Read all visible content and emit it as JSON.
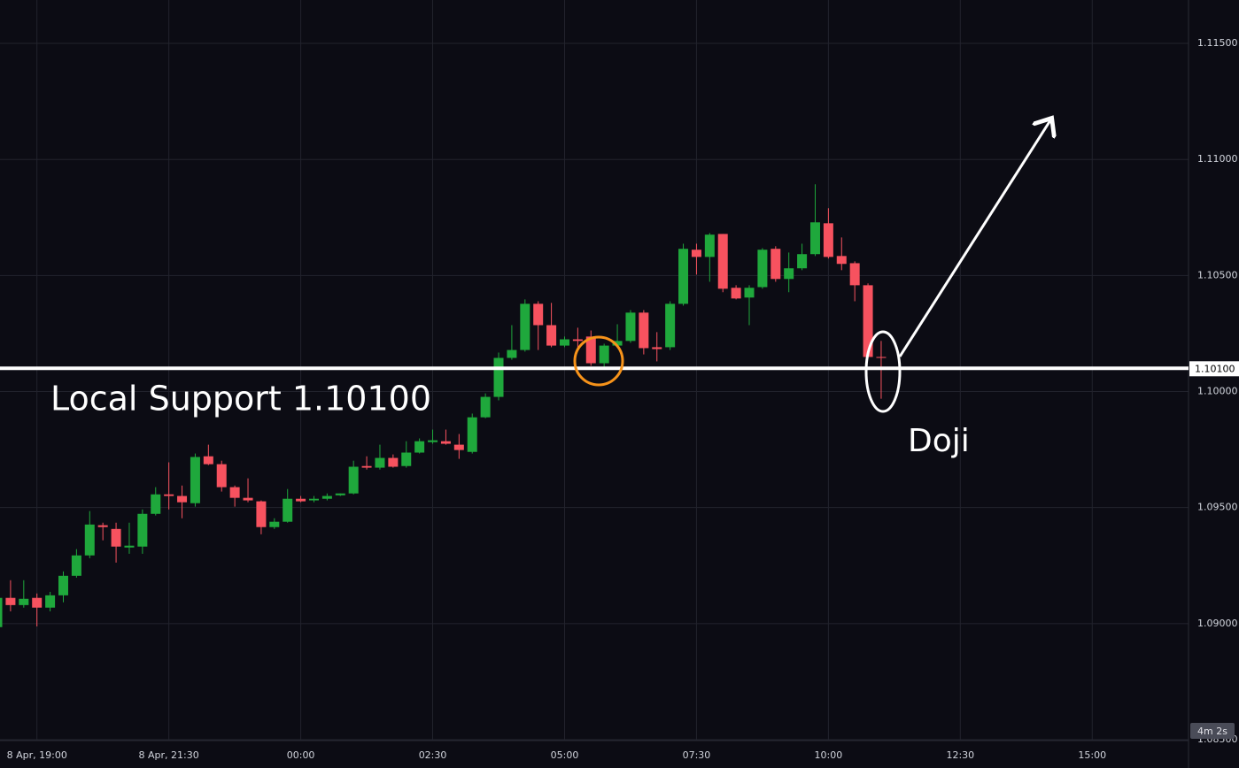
{
  "chart_data": {
    "type": "candlestick",
    "open": [
      1.08985,
      1.09111,
      1.0908,
      1.09111,
      1.09069,
      1.09122,
      1.09206,
      1.09294,
      1.09424,
      1.09408,
      1.09328,
      1.09332,
      1.09473,
      1.09557,
      1.0955,
      1.09519,
      1.09721,
      1.09687,
      1.09588,
      1.09542,
      1.09527,
      1.09416,
      1.09439,
      1.09538,
      1.09531,
      1.09538,
      1.09553,
      1.09561,
      1.09679,
      1.09672,
      1.09714,
      1.09679,
      1.09737,
      1.09782,
      1.09786,
      1.09771,
      1.0974,
      1.09889,
      1.09977,
      1.10145,
      1.10179,
      1.10378,
      1.10286,
      1.10198,
      1.10225,
      1.10237,
      1.10122,
      1.10198,
      1.10218,
      1.1034,
      1.10191,
      1.10191,
      1.10378,
      1.10611,
      1.1058,
      1.10679,
      1.10447,
      1.10405,
      1.1045,
      1.10615,
      1.10485,
      1.10531,
      1.10592,
      1.10725,
      1.10584,
      1.10553,
      1.10458,
      1.10149
    ],
    "high": [
      1.0913,
      1.09187,
      1.09187,
      1.0913,
      1.09137,
      1.09225,
      1.09321,
      1.09485,
      1.09435,
      1.09435,
      1.09435,
      1.09492,
      1.09588,
      1.09695,
      1.09595,
      1.09733,
      1.09771,
      1.09702,
      1.09595,
      1.09626,
      1.09531,
      1.09454,
      1.0958,
      1.0955,
      1.0955,
      1.09561,
      1.09561,
      1.09702,
      1.09721,
      1.09771,
      1.09729,
      1.09786,
      1.09798,
      1.09836,
      1.09836,
      1.09817,
      1.09905,
      1.09992,
      1.10168,
      1.10286,
      1.10397,
      1.10389,
      1.10382,
      1.10237,
      1.10275,
      1.10263,
      1.10206,
      1.1029,
      1.10351,
      1.10351,
      1.10256,
      1.10389,
      1.10637,
      1.10637,
      1.10683,
      1.10679,
      1.10458,
      1.10458,
      1.10618,
      1.10626,
      1.10599,
      1.10637,
      1.10893,
      1.1079,
      1.10664,
      1.10561,
      1.10466,
      1.10218
    ],
    "low": [
      1.08977,
      1.09053,
      1.09069,
      1.08988,
      1.09053,
      1.09092,
      1.09198,
      1.09282,
      1.09359,
      1.09263,
      1.09301,
      1.09301,
      1.09466,
      1.09492,
      1.09454,
      1.09504,
      1.09683,
      1.09569,
      1.09504,
      1.09523,
      1.09385,
      1.09408,
      1.09435,
      1.09523,
      1.09523,
      1.09531,
      1.0955,
      1.09557,
      1.09664,
      1.09664,
      1.09672,
      1.09672,
      1.09733,
      1.09775,
      1.09771,
      1.0971,
      1.09733,
      1.09885,
      1.09962,
      1.10137,
      1.10172,
      1.10179,
      1.10191,
      1.10191,
      1.10179,
      1.10111,
      1.10107,
      1.10191,
      1.1021,
      1.1016,
      1.1013,
      1.10179,
      1.1037,
      1.10504,
      1.10473,
      1.10428,
      1.10397,
      1.10286,
      1.10443,
      1.10473,
      1.10428,
      1.10523,
      1.10584,
      1.10573,
      1.10523,
      1.10389,
      1.10141,
      1.09969
    ],
    "close": [
      1.09111,
      1.0908,
      1.09107,
      1.09069,
      1.09122,
      1.09206,
      1.09294,
      1.09427,
      1.09416,
      1.09332,
      1.09336,
      1.09473,
      1.09557,
      1.0955,
      1.09523,
      1.09718,
      1.09687,
      1.09588,
      1.09542,
      1.09531,
      1.09416,
      1.09439,
      1.09538,
      1.09527,
      1.09538,
      1.0955,
      1.09561,
      1.09676,
      1.09672,
      1.09714,
      1.09676,
      1.09737,
      1.09786,
      1.0979,
      1.09775,
      1.09748,
      1.09889,
      1.09977,
      1.10145,
      1.10179,
      1.10378,
      1.10286,
      1.10198,
      1.10225,
      1.10218,
      1.10122,
      1.10198,
      1.10218,
      1.1034,
      1.10187,
      1.10183,
      1.10378,
      1.10615,
      1.1058,
      1.10676,
      1.10443,
      1.10401,
      1.10447,
      1.10611,
      1.10485,
      1.10531,
      1.10592,
      1.10729,
      1.1058,
      1.1055,
      1.10458,
      1.10149,
      1.10145
    ],
    "up_color": "#1fa83c",
    "down_color": "#f7525f",
    "ylim": [
      1.085,
      1.11687
    ],
    "yticks": [
      {
        "value": 1.085,
        "label": "1.08500"
      },
      {
        "value": 1.09,
        "label": "1.09000"
      },
      {
        "value": 1.095,
        "label": "1.09500"
      },
      {
        "value": 1.1,
        "label": "1.10000"
      },
      {
        "value": 1.105,
        "label": "1.10500"
      },
      {
        "value": 1.11,
        "label": "1.11000"
      },
      {
        "value": 1.115,
        "label": "1.11500"
      }
    ],
    "xlim": [
      0.2,
      90.3
    ],
    "xticks": [
      {
        "value": 3,
        "label": "8 Apr, 19:00"
      },
      {
        "value": 13,
        "label": "8 Apr, 21:30"
      },
      {
        "value": 23,
        "label": "00:00"
      },
      {
        "value": 33,
        "label": "02:30"
      },
      {
        "value": 43,
        "label": "05:00"
      },
      {
        "value": 53,
        "label": "07:30"
      },
      {
        "value": 63,
        "label": "10:00"
      },
      {
        "value": 73,
        "label": "12:30"
      },
      {
        "value": 83,
        "label": "15:00"
      }
    ],
    "grid": true,
    "support": {
      "value": 1.101,
      "label": "1.10100"
    },
    "support_text": "Local Support 1.10100",
    "doji_text": "Doji",
    "countdown": "4m 2s"
  }
}
